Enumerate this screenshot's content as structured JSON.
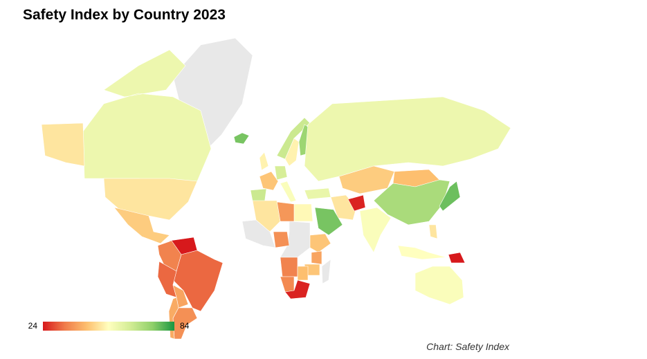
{
  "chart_data": {
    "type": "choropleth",
    "title": "Safety Index by Country 2023",
    "source": "Chart: Safety Index",
    "colorbar": {
      "min": 24,
      "max": 84
    },
    "colors": [
      "#d7191c",
      "#f07c4a",
      "#fdbf6f",
      "#ffffbf",
      "#d2ec94",
      "#8fd06a",
      "#1a9641"
    ],
    "no_data_color": "#e8e8e8",
    "values": [
      58,
      50,
      46,
      24,
      35,
      32,
      32,
      40,
      37,
      41,
      76,
      52,
      65,
      52,
      72,
      45,
      65,
      63,
      55,
      58,
      46,
      44,
      70,
      77,
      55,
      59,
      50,
      25,
      76,
      53,
      38,
      50,
      37,
      45,
      40,
      45,
      35,
      44,
      36,
      25,
      54,
      24,
      55,
      50
    ]
  }
}
